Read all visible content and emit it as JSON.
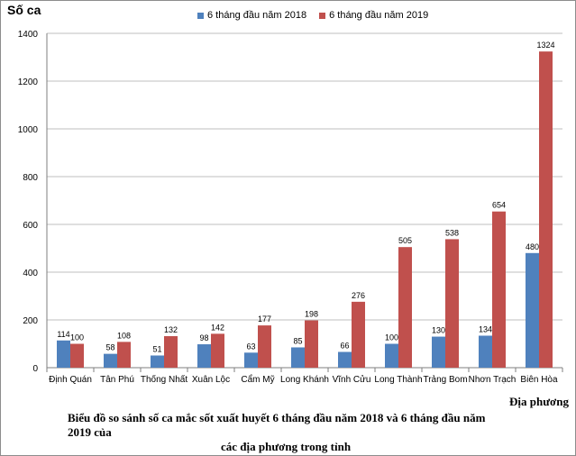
{
  "chart_data": {
    "type": "bar",
    "ylabel": "Số ca",
    "xlabel": "Địa phương",
    "caption_line1": "Biểu đồ so sánh số ca mắc sốt xuất huyết 6 tháng đầu năm 2018 và 6 tháng đầu năm 2019 của",
    "caption_line2": "các địa phương trong tỉnh",
    "ylim": [
      0,
      1400
    ],
    "yticks": [
      0,
      200,
      400,
      600,
      800,
      1000,
      1200,
      1400
    ],
    "grid": true,
    "legend_position": "top",
    "categories": [
      "Định Quán",
      "Tân Phú",
      "Thống Nhất",
      "Xuân Lộc",
      "Cẩm Mỹ",
      "Long Khánh",
      "Vĩnh Cửu",
      "Long Thành",
      "Trảng Bom",
      "Nhơn Trạch",
      "Biên Hòa"
    ],
    "series": [
      {
        "name": "6 tháng đầu năm 2018",
        "color": "#4f81bd",
        "values": [
          114,
          58,
          51,
          98,
          63,
          85,
          66,
          100,
          130,
          134,
          480
        ]
      },
      {
        "name": "6 tháng đầu năm 2019",
        "color": "#c0504d",
        "values": [
          100,
          108,
          132,
          142,
          177,
          198,
          276,
          505,
          538,
          654,
          1324
        ]
      }
    ]
  }
}
